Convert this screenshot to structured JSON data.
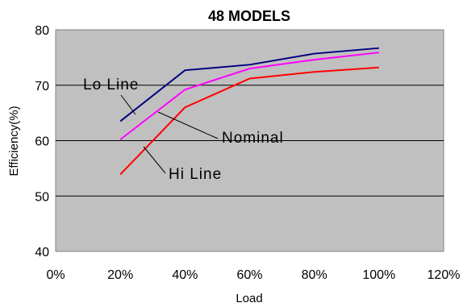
{
  "chart_data": {
    "type": "line",
    "title": "48 MODELS",
    "xlabel": "Load",
    "ylabel": "Efficiency(%)",
    "x_ticks": [
      "0%",
      "20%",
      "40%",
      "60%",
      "80%",
      "100%",
      "120%"
    ],
    "y_ticks": [
      "40",
      "50",
      "60",
      "70",
      "80"
    ],
    "xlim": [
      0,
      120
    ],
    "ylim": [
      40,
      80
    ],
    "grid": "horizontal",
    "plot_background": "#c0c0c0",
    "x": [
      20,
      40,
      60,
      80,
      100
    ],
    "series": [
      {
        "name": "Lo Line",
        "color": "#000080",
        "values": [
          63.5,
          72.7,
          73.7,
          75.7,
          76.7
        ]
      },
      {
        "name": "Nominal",
        "color": "#ff00ff",
        "values": [
          60.2,
          69.2,
          73.0,
          74.6,
          75.9
        ]
      },
      {
        "name": "Hi Line",
        "color": "#ff0000",
        "values": [
          53.9,
          66.0,
          71.2,
          72.4,
          73.2
        ]
      }
    ]
  }
}
